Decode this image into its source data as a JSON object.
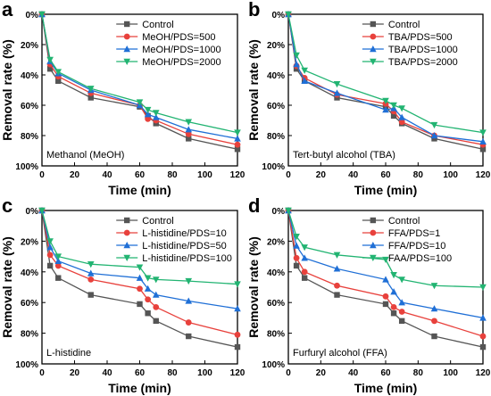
{
  "chart_data": [
    {
      "panel_letter": "a",
      "type": "line",
      "annotation": "Methanol (MeOH)",
      "xlabel": "Time (min)",
      "ylabel": "Removal rate (%)",
      "xlim": [
        0,
        120
      ],
      "ylim": [
        0,
        100
      ],
      "y_inverted": true,
      "x_ticks": [
        "0",
        "20",
        "40",
        "60",
        "80",
        "100",
        "120"
      ],
      "y_ticks": [
        "0%",
        "20%",
        "40%",
        "60%",
        "80%",
        "100%"
      ],
      "legend_position": "top-right",
      "x": [
        0,
        5,
        10,
        30,
        60,
        65,
        70,
        90,
        120
      ],
      "series": [
        {
          "name": "Control",
          "color": "#555555",
          "marker": "square",
          "values": [
            0,
            36,
            44,
            55,
            61,
            67,
            72,
            82,
            89
          ]
        },
        {
          "name": "MeOH/PDS=500",
          "color": "#e8413c",
          "marker": "circle",
          "values": [
            0,
            33,
            41,
            52,
            60,
            69,
            70,
            79,
            86
          ]
        },
        {
          "name": "MeOH/PDS=1000",
          "color": "#1f6fd6",
          "marker": "triangle-up",
          "values": [
            0,
            31,
            39,
            50,
            60,
            66,
            68,
            76,
            82
          ]
        },
        {
          "name": "MeOH/PDS=2000",
          "color": "#22b472",
          "marker": "triangle-down",
          "values": [
            0,
            30,
            38,
            49,
            58,
            63,
            65,
            71,
            78
          ]
        }
      ]
    },
    {
      "panel_letter": "b",
      "type": "line",
      "annotation": "Tert-butyl alcohol (TBA)",
      "xlabel": "Time (min)",
      "ylabel": "Removal rate (%)",
      "xlim": [
        0,
        120
      ],
      "ylim": [
        0,
        100
      ],
      "y_inverted": true,
      "x_ticks": [
        "0",
        "20",
        "40",
        "60",
        "80",
        "100",
        "120"
      ],
      "y_ticks": [
        "0%",
        "20%",
        "40%",
        "60%",
        "80%",
        "100%"
      ],
      "legend_position": "top-right",
      "x": [
        0,
        5,
        10,
        30,
        60,
        65,
        70,
        90,
        120
      ],
      "series": [
        {
          "name": "Control",
          "color": "#555555",
          "marker": "square",
          "values": [
            0,
            36,
            44,
            55,
            61,
            67,
            72,
            82,
            89
          ]
        },
        {
          "name": "TBA/PDS=500",
          "color": "#e8413c",
          "marker": "circle",
          "values": [
            0,
            34,
            42,
            53,
            59,
            64,
            71,
            80,
            86
          ]
        },
        {
          "name": "TBA/PDS=1000",
          "color": "#1f6fd6",
          "marker": "triangle-up",
          "values": [
            0,
            33,
            44,
            52,
            63,
            62,
            68,
            80,
            84
          ]
        },
        {
          "name": "TBA/PDS=2000",
          "color": "#22b472",
          "marker": "triangle-down",
          "values": [
            0,
            27,
            37,
            46,
            57,
            60,
            62,
            73,
            78
          ]
        }
      ]
    },
    {
      "panel_letter": "c",
      "type": "line",
      "annotation": "L-histidine",
      "xlabel": "Time (min)",
      "ylabel": "Removal rate (%)",
      "xlim": [
        0,
        120
      ],
      "ylim": [
        0,
        100
      ],
      "y_inverted": true,
      "x_ticks": [
        "0",
        "20",
        "40",
        "60",
        "80",
        "100",
        "120"
      ],
      "y_ticks": [
        "0%",
        "20%",
        "40%",
        "60%",
        "80%",
        "100%"
      ],
      "legend_position": "top-right",
      "x": [
        0,
        5,
        10,
        30,
        60,
        65,
        70,
        90,
        120
      ],
      "series": [
        {
          "name": "Control",
          "color": "#555555",
          "marker": "square",
          "values": [
            0,
            36,
            44,
            55,
            61,
            67,
            72,
            82,
            89
          ]
        },
        {
          "name": "L-histidine/PDS=10",
          "color": "#e8413c",
          "marker": "circle",
          "values": [
            0,
            29,
            36,
            45,
            51,
            58,
            63,
            73,
            81
          ]
        },
        {
          "name": "L-histidine/PDS=50",
          "color": "#1f6fd6",
          "marker": "triangle-up",
          "values": [
            0,
            24,
            33,
            41,
            44,
            51,
            55,
            59,
            64
          ]
        },
        {
          "name": "L-histidine/PDS=100",
          "color": "#22b472",
          "marker": "triangle-down",
          "values": [
            0,
            20,
            30,
            35,
            37,
            44,
            45,
            46,
            48
          ]
        }
      ]
    },
    {
      "panel_letter": "d",
      "type": "line",
      "annotation": "Furfuryl alcohol (FFA)",
      "xlabel": "Time (min)",
      "ylabel": "Removal rate (%)",
      "xlim": [
        0,
        120
      ],
      "ylim": [
        0,
        100
      ],
      "y_inverted": true,
      "x_ticks": [
        "0",
        "20",
        "40",
        "60",
        "80",
        "100",
        "120"
      ],
      "y_ticks": [
        "0%",
        "20%",
        "40%",
        "60%",
        "80%",
        "100%"
      ],
      "legend_position": "top-right",
      "x": [
        0,
        5,
        10,
        30,
        60,
        65,
        70,
        90,
        120
      ],
      "series": [
        {
          "name": "Control",
          "color": "#555555",
          "marker": "square",
          "values": [
            0,
            36,
            44,
            55,
            61,
            67,
            72,
            82,
            89
          ]
        },
        {
          "name": "FFA/PDS=1",
          "color": "#e8413c",
          "marker": "circle",
          "values": [
            0,
            31,
            40,
            49,
            56,
            63,
            66,
            72,
            82
          ]
        },
        {
          "name": "FFA/PDS=10",
          "color": "#1f6fd6",
          "marker": "triangle-up",
          "values": [
            0,
            23,
            31,
            38,
            45,
            53,
            60,
            64,
            70
          ]
        },
        {
          "name": "FAA/PDS=100",
          "color": "#22b472",
          "marker": "triangle-down",
          "values": [
            0,
            17,
            24,
            29,
            32,
            42,
            45,
            49,
            50
          ]
        }
      ]
    }
  ]
}
